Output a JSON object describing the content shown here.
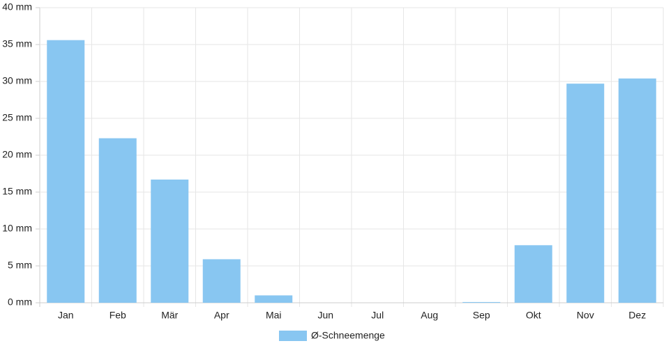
{
  "chart_data": {
    "type": "bar",
    "categories": [
      "Jan",
      "Feb",
      "Mär",
      "Apr",
      "Mai",
      "Jun",
      "Jul",
      "Aug",
      "Sep",
      "Okt",
      "Nov",
      "Dez"
    ],
    "series": [
      {
        "name": "Ø-Schneemenge",
        "color": "#88c6f1",
        "values": [
          35.6,
          22.3,
          16.7,
          5.9,
          1.0,
          0,
          0,
          0,
          0.1,
          7.8,
          29.7,
          30.4
        ]
      }
    ],
    "ylim": [
      0,
      40
    ],
    "yticks": [
      {
        "value": 0,
        "label": "0 mm"
      },
      {
        "value": 5,
        "label": "5 mm"
      },
      {
        "value": 10,
        "label": "10 mm"
      },
      {
        "value": 15,
        "label": "15 mm"
      },
      {
        "value": 20,
        "label": "20 mm"
      },
      {
        "value": 25,
        "label": "25 mm"
      },
      {
        "value": 30,
        "label": "30 mm"
      },
      {
        "value": 35,
        "label": "35 mm"
      },
      {
        "value": 40,
        "label": "40 mm"
      }
    ],
    "grid": true,
    "legend": "bottom"
  }
}
